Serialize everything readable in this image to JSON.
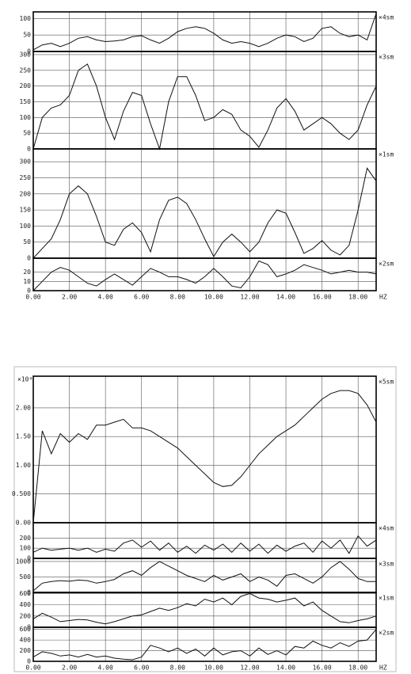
{
  "chart_data": [
    {
      "type": "line",
      "x": [
        0,
        0.5,
        1,
        1.5,
        2,
        2.5,
        3,
        3.5,
        4,
        4.5,
        5,
        5.5,
        6,
        6.5,
        7,
        7.5,
        8,
        8.5,
        9,
        9.5,
        10,
        10.5,
        11,
        11.5,
        12,
        12.5,
        13,
        13.5,
        14,
        14.5,
        15,
        15.5,
        16,
        16.5,
        17,
        17.5,
        18,
        18.5,
        19
      ],
      "xlim": [
        0,
        19
      ],
      "xticks": [
        {
          "value": 0,
          "label": "0.00"
        },
        {
          "value": 2,
          "label": "2.00"
        },
        {
          "value": 4,
          "label": "4.00"
        },
        {
          "value": 6,
          "label": "6.00"
        },
        {
          "value": 8,
          "label": "8.00"
        },
        {
          "value": 10,
          "label": "10.00"
        },
        {
          "value": 12,
          "label": "12.00"
        },
        {
          "value": 14,
          "label": "14.00"
        },
        {
          "value": 16,
          "label": "16.00"
        },
        {
          "value": 18,
          "label": "18.00"
        }
      ],
      "x_label": "HZ",
      "panels": [
        {
          "name": "×4sm",
          "ylim": [
            0,
            120
          ],
          "yticks": [
            0,
            50,
            100
          ],
          "values": [
            5,
            20,
            25,
            15,
            25,
            40,
            45,
            35,
            30,
            32,
            35,
            45,
            48,
            35,
            25,
            40,
            60,
            70,
            75,
            70,
            55,
            35,
            25,
            30,
            25,
            15,
            25,
            40,
            50,
            45,
            30,
            40,
            70,
            75,
            55,
            45,
            50,
            35,
            115
          ]
        },
        {
          "name": "×3sm",
          "ylim": [
            0,
            310
          ],
          "yticks": [
            0,
            50,
            100,
            150,
            200,
            250,
            300
          ],
          "values": [
            0,
            100,
            130,
            140,
            170,
            250,
            270,
            200,
            100,
            30,
            120,
            180,
            170,
            80,
            0,
            150,
            230,
            230,
            170,
            90,
            100,
            125,
            110,
            60,
            40,
            5,
            60,
            130,
            160,
            120,
            60,
            80,
            100,
            80,
            50,
            30,
            60,
            140,
            200
          ]
        },
        {
          "name": "×1sm",
          "ylim": [
            0,
            340
          ],
          "yticks": [
            0,
            50,
            100,
            150,
            200,
            250,
            300
          ],
          "values": [
            0,
            30,
            60,
            120,
            200,
            225,
            200,
            130,
            50,
            40,
            90,
            110,
            80,
            20,
            120,
            180,
            190,
            170,
            120,
            60,
            5,
            50,
            75,
            50,
            20,
            50,
            110,
            150,
            140,
            80,
            15,
            30,
            55,
            25,
            10,
            40,
            150,
            280,
            240
          ]
        },
        {
          "name": "×2sm",
          "ylim": [
            0,
            35
          ],
          "yticks": [
            0,
            10,
            20
          ],
          "values": [
            0,
            10,
            20,
            25,
            22,
            15,
            8,
            5,
            12,
            18,
            12,
            6,
            15,
            24,
            20,
            15,
            15,
            12,
            8,
            15,
            24,
            15,
            5,
            3,
            15,
            32,
            28,
            15,
            18,
            22,
            28,
            25,
            22,
            18,
            20,
            22,
            20,
            20,
            18
          ]
        }
      ]
    },
    {
      "type": "line",
      "x": [
        0,
        0.5,
        1,
        1.5,
        2,
        2.5,
        3,
        3.5,
        4,
        4.5,
        5,
        5.5,
        6,
        6.5,
        7,
        7.5,
        8,
        8.5,
        9,
        9.5,
        10,
        10.5,
        11,
        11.5,
        12,
        12.5,
        13,
        13.5,
        14,
        14.5,
        15,
        15.5,
        16,
        16.5,
        17,
        17.5,
        18,
        18.5,
        19
      ],
      "xlim": [
        0,
        19
      ],
      "xticks": [
        {
          "value": 0,
          "label": "0.00"
        },
        {
          "value": 2,
          "label": "2.00"
        },
        {
          "value": 4,
          "label": "4.00"
        },
        {
          "value": 6,
          "label": "6.00"
        },
        {
          "value": 8,
          "label": "8.00"
        },
        {
          "value": 10,
          "label": "10.00"
        },
        {
          "value": 12,
          "label": "12.00"
        },
        {
          "value": 14,
          "label": "14.00"
        },
        {
          "value": 16,
          "label": "16.00"
        },
        {
          "value": 18,
          "label": "18.00"
        }
      ],
      "x_label": "HZ",
      "multiplier": "×10⁴",
      "panels": [
        {
          "name": "×5sm",
          "ylim": [
            0,
            2.55
          ],
          "yticks": [
            {
              "value": 0,
              "label": "0.00"
            },
            {
              "value": 0.5,
              "label": "0.500"
            },
            {
              "value": 1,
              "label": "1.00"
            },
            {
              "value": 1.5,
              "label": "1.50"
            },
            {
              "value": 2,
              "label": "2.00"
            }
          ],
          "values": [
            0,
            1.6,
            1.2,
            1.55,
            1.4,
            1.55,
            1.45,
            1.7,
            1.7,
            1.75,
            1.8,
            1.65,
            1.65,
            1.6,
            1.5,
            1.4,
            1.3,
            1.15,
            1.0,
            0.85,
            0.7,
            0.63,
            0.65,
            0.8,
            1.0,
            1.2,
            1.35,
            1.5,
            1.6,
            1.7,
            1.85,
            2.0,
            2.15,
            2.25,
            2.3,
            2.3,
            2.25,
            2.05,
            1.75
          ]
        },
        {
          "name": "×4sm",
          "ylim": [
            0,
            350
          ],
          "yticks": [
            0,
            100,
            200
          ],
          "values": [
            60,
            100,
            80,
            90,
            100,
            80,
            100,
            60,
            90,
            70,
            150,
            180,
            110,
            170,
            80,
            150,
            60,
            120,
            50,
            130,
            80,
            140,
            60,
            150,
            70,
            140,
            50,
            130,
            70,
            120,
            150,
            60,
            170,
            100,
            180,
            50,
            220,
            120,
            180
          ]
        },
        {
          "name": "×3sm",
          "ylim": [
            0,
            1100
          ],
          "yticks": [
            0,
            500,
            1000
          ],
          "values": [
            50,
            300,
            350,
            380,
            360,
            400,
            380,
            300,
            350,
            420,
            600,
            700,
            550,
            800,
            1000,
            850,
            700,
            550,
            450,
            350,
            550,
            400,
            500,
            600,
            350,
            500,
            400,
            200,
            550,
            600,
            450,
            300,
            500,
            800,
            1000,
            750,
            450,
            350,
            350
          ]
        },
        {
          "name": "×1sm",
          "ylim": [
            0,
            620
          ],
          "yticks": [
            0,
            200,
            400,
            600
          ],
          "values": [
            150,
            250,
            180,
            100,
            120,
            140,
            130,
            90,
            60,
            100,
            150,
            200,
            220,
            280,
            340,
            300,
            350,
            420,
            380,
            500,
            450,
            520,
            400,
            550,
            600,
            520,
            500,
            450,
            480,
            520,
            380,
            450,
            300,
            200,
            100,
            80,
            120,
            150,
            200
          ]
        },
        {
          "name": "×2sm",
          "ylim": [
            0,
            640
          ],
          "yticks": [
            0,
            200,
            400,
            600
          ],
          "values": [
            80,
            180,
            150,
            100,
            120,
            80,
            130,
            80,
            100,
            60,
            40,
            30,
            80,
            300,
            250,
            180,
            250,
            150,
            230,
            100,
            250,
            120,
            180,
            200,
            100,
            250,
            130,
            200,
            120,
            280,
            250,
            380,
            300,
            250,
            350,
            280,
            380,
            400,
            600
          ]
        }
      ]
    }
  ]
}
